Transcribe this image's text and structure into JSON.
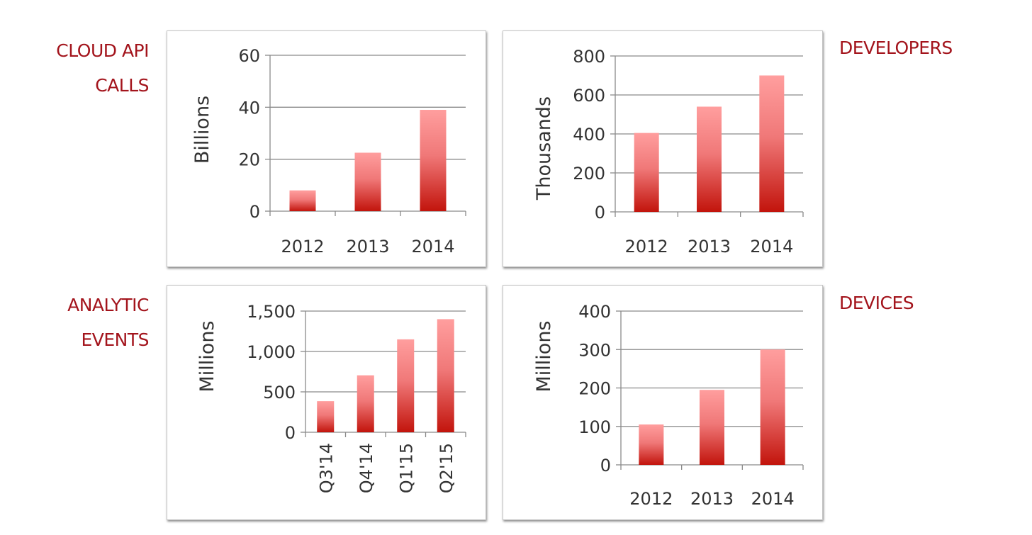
{
  "labels": {
    "cloud": [
      "CLOUD API",
      "CALLS"
    ],
    "analytic": [
      "ANALYTIC",
      "EVENTS"
    ],
    "developers": [
      "DEVELOPERS"
    ],
    "devices": [
      "DEVICES"
    ]
  },
  "colors": {
    "label": "#a3141c",
    "bar_top": "#ff9e9e",
    "bar_bottom": "#c2140c"
  },
  "chart_data": [
    {
      "id": "cloud-api-calls",
      "type": "bar",
      "categories": [
        "2012",
        "2013",
        "2014"
      ],
      "values": [
        8,
        22.5,
        39
      ],
      "ylabel": "Billions",
      "ylim": [
        0,
        60
      ],
      "yticks": [
        0,
        20,
        40,
        60
      ],
      "ytick_labels": [
        "0",
        "20",
        "40",
        "60"
      ],
      "grid": true,
      "xtick_rotation": 0
    },
    {
      "id": "developers",
      "type": "bar",
      "categories": [
        "2012",
        "2013",
        "2014"
      ],
      "values": [
        405,
        540,
        700
      ],
      "ylabel": "Thousands",
      "ylim": [
        0,
        800
      ],
      "yticks": [
        0,
        200,
        400,
        600,
        800
      ],
      "ytick_labels": [
        "0",
        "200",
        "400",
        "600",
        "800"
      ],
      "grid": true,
      "xtick_rotation": 0
    },
    {
      "id": "analytic-events",
      "type": "bar",
      "categories": [
        "Q3'14",
        "Q4'14",
        "Q1'15",
        "Q2'15"
      ],
      "values": [
        385,
        705,
        1150,
        1400
      ],
      "ylabel": "Millions",
      "ylim": [
        0,
        1500
      ],
      "yticks": [
        0,
        500,
        1000,
        1500
      ],
      "ytick_labels": [
        "0",
        "500",
        "1,000",
        "1,500"
      ],
      "grid": true,
      "xtick_rotation": -90
    },
    {
      "id": "devices",
      "type": "bar",
      "categories": [
        "2012",
        "2013",
        "2014"
      ],
      "values": [
        105,
        195,
        300
      ],
      "ylabel": "Millions",
      "ylim": [
        0,
        400
      ],
      "yticks": [
        0,
        100,
        200,
        300,
        400
      ],
      "ytick_labels": [
        "0",
        "100",
        "200",
        "300",
        "400"
      ],
      "grid": true,
      "xtick_rotation": 0
    }
  ]
}
